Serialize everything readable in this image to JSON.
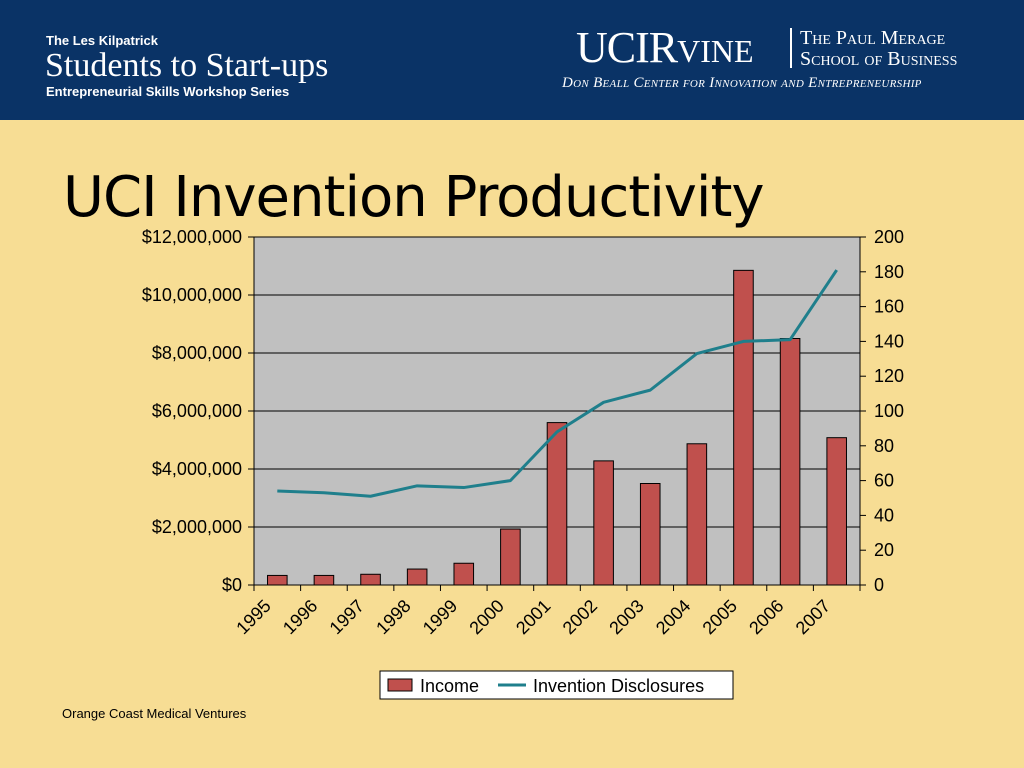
{
  "header": {
    "kicker": "The Les Kilpatrick",
    "series_title": "Students to Start-ups",
    "subtitle": "Entrepreneurial Skills Workshop Series",
    "logo_uci_big1": "UCI",
    "logo_uci_r": "R",
    "logo_uci_small": "VINE",
    "school_line1": "The Paul Merage",
    "school_line2": "School of Business",
    "center_line": "Don Beall Center for Innovation and Entrepreneurship",
    "banner_color": "#0a3366"
  },
  "slide": {
    "title": "UCI Invention Productivity",
    "footer": "Orange Coast Medical Ventures",
    "background_color": "#f7dd94"
  },
  "chart_data": {
    "type": "bar",
    "title": "",
    "categories": [
      "1995",
      "1996",
      "1997",
      "1998",
      "1999",
      "2000",
      "2001",
      "2002",
      "2003",
      "2004",
      "2005",
      "2006",
      "2007"
    ],
    "series": [
      {
        "name": "Income",
        "type": "bar",
        "axis": "left",
        "color": "#c0504d",
        "values": [
          330000,
          330000,
          370000,
          550000,
          750000,
          1930000,
          5600000,
          4280000,
          3500000,
          4870000,
          10850000,
          8500000,
          5080000
        ]
      },
      {
        "name": "Invention Disclosures",
        "type": "line",
        "axis": "right",
        "color": "#1f7f8c",
        "values": [
          54,
          53,
          51,
          57,
          56,
          60,
          88,
          105,
          112,
          133,
          140,
          141,
          181
        ]
      }
    ],
    "y_left": {
      "min": 0,
      "max": 12000000,
      "ticks": [
        "$0",
        "$2,000,000",
        "$4,000,000",
        "$6,000,000",
        "$8,000,000",
        "$10,000,000",
        "$12,000,000"
      ]
    },
    "y_right": {
      "min": 0,
      "max": 200,
      "ticks": [
        "0",
        "20",
        "40",
        "60",
        "80",
        "100",
        "120",
        "140",
        "160",
        "180",
        "200"
      ]
    },
    "grid": true,
    "plot_background": "#c0c0c0",
    "legend_position": "bottom"
  }
}
